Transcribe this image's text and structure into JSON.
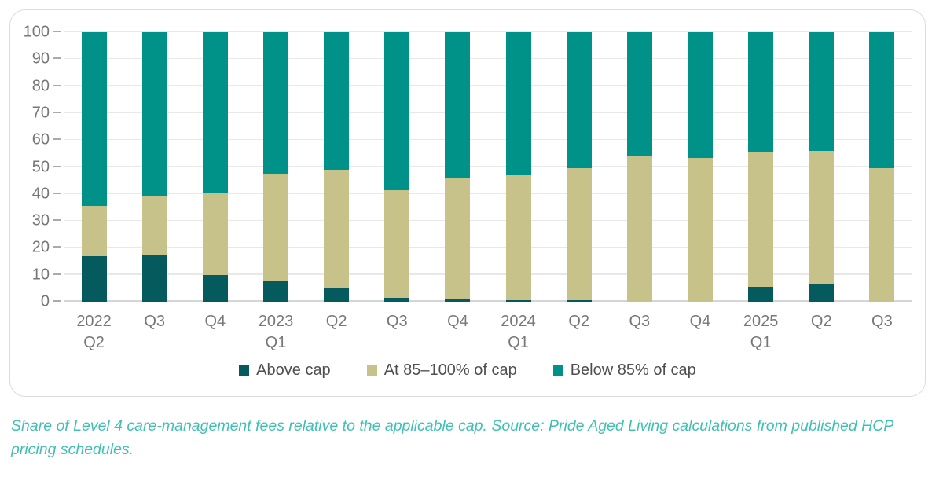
{
  "caption": "Share of Level 4 care-management fees relative to the applicable cap. Source: Pride Aged Living calculations from published HCP pricing schedules.",
  "chart_data": {
    "type": "bar",
    "stacked": true,
    "title": "",
    "xlabel": "",
    "ylabel": "",
    "ylim": [
      0,
      100
    ],
    "yticks": [
      0,
      10,
      20,
      30,
      40,
      50,
      60,
      70,
      80,
      90,
      100
    ],
    "grid": true,
    "legend_position": "bottom-center",
    "categories": [
      [
        "2022",
        "Q2"
      ],
      [
        "Q3"
      ],
      [
        "Q4"
      ],
      [
        "2023",
        "Q1"
      ],
      [
        "Q2"
      ],
      [
        "Q3"
      ],
      [
        "Q4"
      ],
      [
        "2024",
        "Q1"
      ],
      [
        "Q2"
      ],
      [
        "Q3"
      ],
      [
        "Q4"
      ],
      [
        "2025",
        "Q1"
      ],
      [
        "Q2"
      ],
      [
        "Q3"
      ]
    ],
    "series": [
      {
        "name": "Above cap",
        "color": "#055a5e",
        "values": [
          17,
          17.5,
          10,
          8,
          5,
          1.5,
          1,
          0.5,
          0.5,
          0,
          0,
          5.5,
          6.5,
          0
        ]
      },
      {
        "name": "At 85–100% of cap",
        "color": "#c6c289",
        "values": [
          18.5,
          21.5,
          30.5,
          39.5,
          44,
          40,
          45,
          46.5,
          49,
          54,
          53.5,
          50,
          49.5,
          49.5
        ]
      },
      {
        "name": "Below 85% of cap",
        "color": "#009289",
        "values": [
          64.5,
          61,
          59.5,
          52.5,
          51,
          58.5,
          54,
          53,
          50.5,
          46,
          46.5,
          44.5,
          44,
          50.5
        ]
      }
    ]
  },
  "colors": {
    "caption_text": "#40c0b5",
    "axis_text": "#76777b",
    "legend_text": "#4e4f52",
    "gridline": "#e8e8e9",
    "tick": "#a9aaac",
    "zero_line": "#d4d5d7",
    "card_border": "#dcdcde"
  }
}
